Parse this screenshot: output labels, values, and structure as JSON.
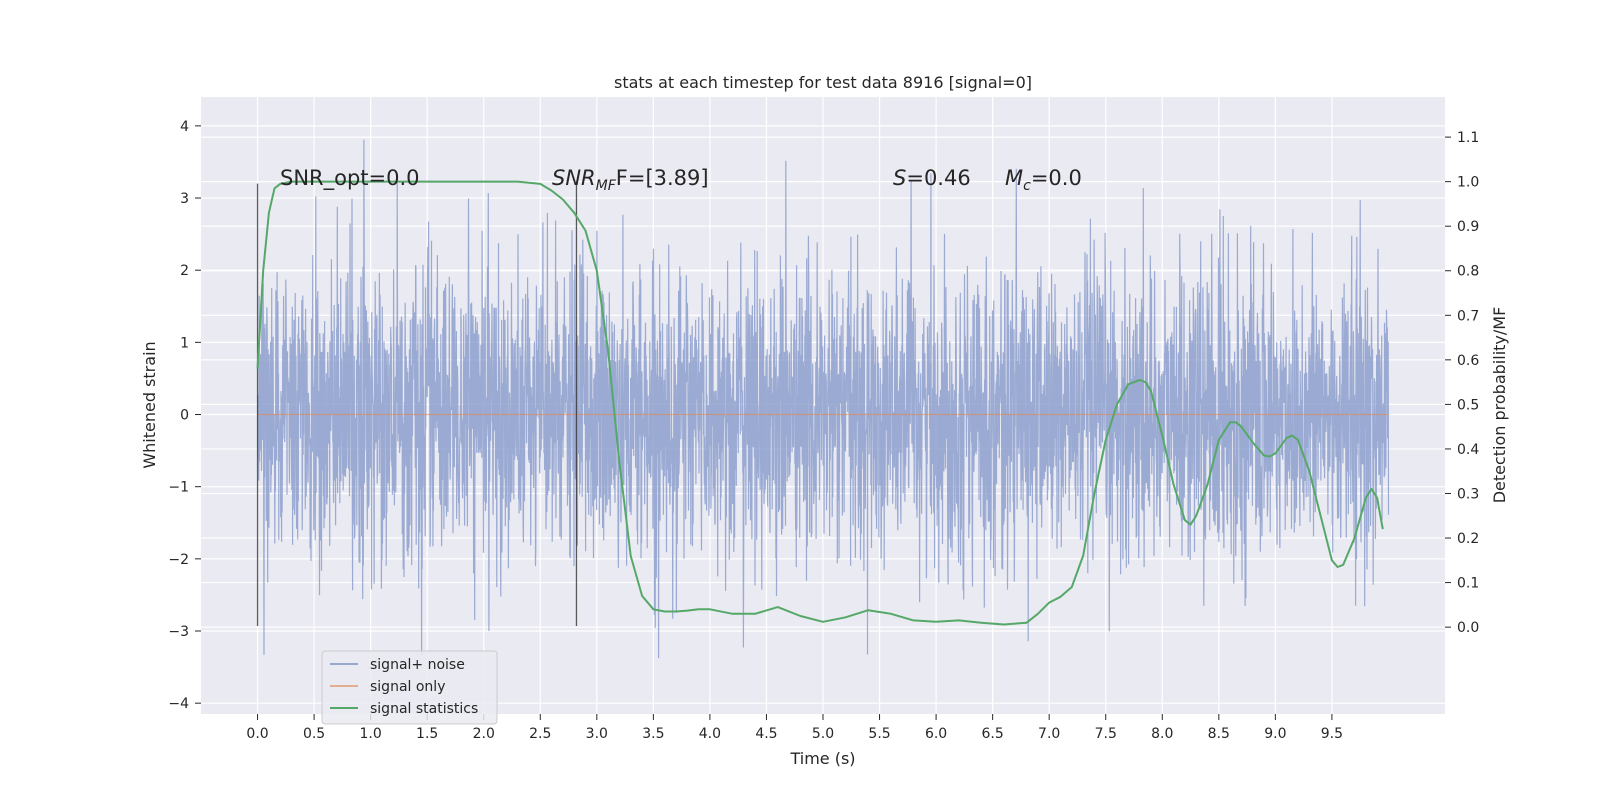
{
  "chart_data": {
    "type": "line",
    "title": "stats at each timestep for test data 8916 [signal=0]",
    "xlabel": "Time (s)",
    "ylabel": "Whitened strain",
    "y2label": "Detection probability/MF",
    "xlim": [
      -0.5,
      10.5
    ],
    "ylim": [
      -4.15,
      4.4
    ],
    "y2lim": [
      -0.195,
      1.19
    ],
    "xticks": [
      "0.0",
      "0.5",
      "1.0",
      "1.5",
      "2.0",
      "2.5",
      "3.0",
      "3.5",
      "4.0",
      "4.5",
      "5.0",
      "5.5",
      "6.0",
      "6.5",
      "7.0",
      "7.5",
      "8.0",
      "8.5",
      "9.0",
      "9.5"
    ],
    "yticks": [
      "4",
      "3",
      "2",
      "1",
      "0",
      "−1",
      "−2",
      "−3",
      "−4"
    ],
    "y2ticks": [
      "1.1",
      "1.0",
      "0.9",
      "0.8",
      "0.7",
      "0.6",
      "0.5",
      "0.4",
      "0.3",
      "0.2",
      "0.1",
      "0.0"
    ],
    "grid": true,
    "legend_position": "lower-left",
    "series": [
      {
        "name": "signal+ noise",
        "color": "#8c9fcc",
        "axis": "left",
        "x_range": [
          0.0,
          10.0
        ],
        "noise_sigma": 1.0,
        "value_range": [
          -3.8,
          4.05
        ],
        "note_visible": "dense noise trace spanning the full time range"
      },
      {
        "name": "signal only",
        "color": "#dd8452",
        "axis": "left",
        "x": [
          0.0,
          10.0
        ],
        "y": [
          0.0,
          0.0
        ]
      },
      {
        "name": "signal statistics",
        "color": "#55a868",
        "axis": "right",
        "x": [
          0.0,
          0.05,
          0.1,
          0.15,
          0.2,
          0.3,
          0.5,
          1.0,
          1.5,
          2.0,
          2.3,
          2.5,
          2.6,
          2.7,
          2.8,
          2.9,
          3.0,
          3.1,
          3.2,
          3.3,
          3.4,
          3.5,
          3.6,
          3.7,
          3.8,
          3.9,
          4.0,
          4.2,
          4.4,
          4.6,
          4.8,
          5.0,
          5.2,
          5.4,
          5.6,
          5.8,
          6.0,
          6.2,
          6.4,
          6.6,
          6.8,
          6.9,
          7.0,
          7.1,
          7.2,
          7.3,
          7.4,
          7.5,
          7.6,
          7.7,
          7.8,
          7.85,
          7.9,
          8.0,
          8.1,
          8.2,
          8.25,
          8.3,
          8.4,
          8.5,
          8.6,
          8.65,
          8.7,
          8.8,
          8.9,
          8.95,
          9.0,
          9.1,
          9.15,
          9.2,
          9.3,
          9.4,
          9.5,
          9.55,
          9.6,
          9.7,
          9.8,
          9.85,
          9.9,
          9.95
        ],
        "y": [
          0.58,
          0.8,
          0.93,
          0.985,
          0.995,
          1.0,
          1.0,
          1.0,
          1.0,
          1.0,
          1.0,
          0.995,
          0.98,
          0.96,
          0.93,
          0.89,
          0.8,
          0.62,
          0.37,
          0.16,
          0.07,
          0.04,
          0.035,
          0.035,
          0.037,
          0.04,
          0.04,
          0.03,
          0.03,
          0.045,
          0.025,
          0.012,
          0.022,
          0.038,
          0.03,
          0.015,
          0.012,
          0.015,
          0.01,
          0.006,
          0.01,
          0.03,
          0.055,
          0.068,
          0.09,
          0.16,
          0.3,
          0.42,
          0.5,
          0.545,
          0.555,
          0.55,
          0.53,
          0.43,
          0.32,
          0.24,
          0.23,
          0.25,
          0.32,
          0.42,
          0.46,
          0.46,
          0.45,
          0.415,
          0.385,
          0.383,
          0.39,
          0.425,
          0.43,
          0.42,
          0.35,
          0.25,
          0.15,
          0.135,
          0.14,
          0.2,
          0.29,
          0.31,
          0.29,
          0.22
        ]
      }
    ],
    "annotations": {
      "snr_opt": "SNR_opt=0.0",
      "snr_mf_prefix": "SNR",
      "snr_mf_sub": "MF",
      "snr_mf_value": "F=[3.89]",
      "s_symbol": "S",
      "s_value": "=0.46",
      "mc_symbol": "M",
      "mc_sub": "c",
      "mc_value": "=0.0",
      "vlines_x": [
        0.0,
        2.82
      ]
    }
  }
}
